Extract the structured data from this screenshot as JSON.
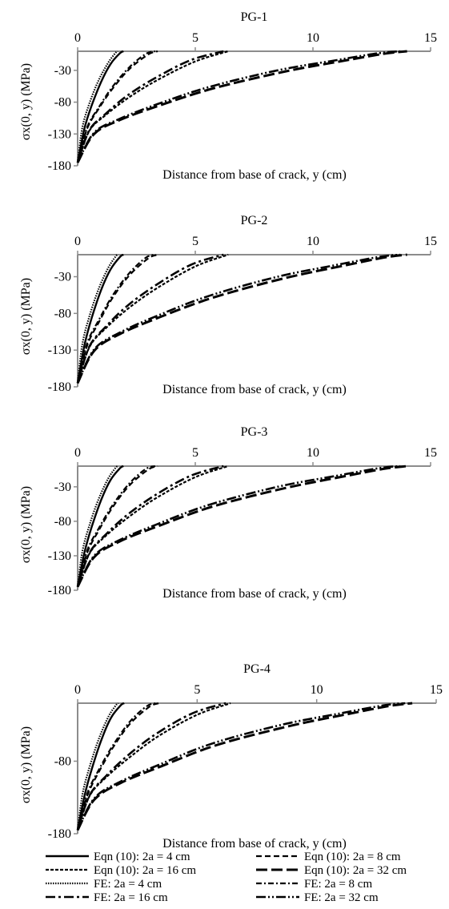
{
  "legend": {
    "placement": "bottom",
    "entries": [
      {
        "key": "eqn4",
        "label": "Eqn (10): 2a = 4 cm",
        "dash": "none",
        "width": 2.4
      },
      {
        "key": "eqn8",
        "label": "Eqn (10): 2a = 8 cm",
        "dash": "7 4",
        "width": 2.2
      },
      {
        "key": "eqn16",
        "label": "Eqn (10): 2a = 16 cm",
        "dash": "4 2",
        "width": 2.2
      },
      {
        "key": "eqn32",
        "label": "Eqn (10): 2a = 32 cm",
        "dash": "14 5",
        "width": 3
      },
      {
        "key": "fe4",
        "label": "FE: 2a = 4 cm",
        "dash": "1.5 1.5",
        "width": 2.2
      },
      {
        "key": "fe8",
        "label": "FE: 2a = 8 cm",
        "dash": "7 3 2 3",
        "width": 2.2
      },
      {
        "key": "fe16",
        "label": "FE: 2a = 16 cm",
        "dash": "12 4 3 4",
        "width": 2.6
      },
      {
        "key": "fe32",
        "label": "FE: 2a = 32 cm",
        "dash": "12 3 2 3 2 3",
        "width": 2.6
      }
    ]
  },
  "chart_data": [
    {
      "type": "line",
      "title": "PG-1",
      "xlabel": "Distance from base of crack, y (cm)",
      "ylabel": "σx(0, y) (MPa)",
      "xlim": [
        0,
        15
      ],
      "ylim": [
        -180,
        0
      ],
      "xticks": [
        "0",
        "5",
        "10",
        "15"
      ],
      "yticks": [
        "-30",
        "-80",
        "-130",
        "-180"
      ],
      "ytick_values": [
        -30,
        -80,
        -130,
        -180
      ],
      "x_axis_position": "top",
      "grid": false,
      "series": [
        {
          "key": "fe4",
          "name": "FE: 2a = 4 cm",
          "x": [
            0,
            0.2,
            0.5,
            0.9,
            1.3,
            1.6,
            1.7
          ],
          "y": [
            -175,
            -120,
            -82,
            -45,
            -18,
            -3,
            0
          ]
        },
        {
          "key": "eqn4",
          "name": "Eqn (10): 2a = 4 cm",
          "x": [
            0,
            0.3,
            0.6,
            1.0,
            1.4,
            1.8,
            1.95
          ],
          "y": [
            -175,
            -120,
            -85,
            -48,
            -20,
            -3,
            0
          ]
        },
        {
          "key": "eqn8",
          "name": "Eqn (10): 2a = 8 cm",
          "x": [
            0,
            0.4,
            0.9,
            1.5,
            2.2,
            3.0,
            3.4
          ],
          "y": [
            -175,
            -122,
            -90,
            -58,
            -28,
            -5,
            0
          ]
        },
        {
          "key": "fe8",
          "name": "FE: 2a = 8 cm",
          "x": [
            0,
            0.4,
            0.9,
            1.5,
            2.2,
            2.9,
            3.3
          ],
          "y": [
            -175,
            -120,
            -88,
            -55,
            -25,
            -4,
            0
          ]
        },
        {
          "key": "eqn16",
          "name": "Eqn (10): 2a = 16 cm",
          "x": [
            0,
            0.5,
            1.2,
            2.2,
            3.4,
            5.0,
            6.4
          ],
          "y": [
            -175,
            -125,
            -100,
            -72,
            -45,
            -16,
            0
          ]
        },
        {
          "key": "fe16",
          "name": "FE: 2a = 16 cm",
          "x": [
            0,
            0.5,
            1.2,
            2.1,
            3.3,
            4.8,
            6.2
          ],
          "y": [
            -175,
            -124,
            -98,
            -70,
            -42,
            -14,
            0
          ]
        },
        {
          "key": "eqn32",
          "name": "Eqn (10): 2a = 32 cm",
          "x": [
            0,
            0.7,
            1.8,
            3.5,
            5.8,
            8.8,
            11.3,
            13.0,
            14.0
          ],
          "y": [
            -175,
            -130,
            -108,
            -85,
            -58,
            -32,
            -15,
            -4,
            0
          ]
        },
        {
          "key": "fe32",
          "name": "FE: 2a = 32 cm",
          "x": [
            0,
            0.7,
            1.8,
            3.4,
            5.6,
            8.5,
            11.0,
            12.8,
            13.7
          ],
          "y": [
            -175,
            -128,
            -106,
            -83,
            -56,
            -30,
            -14,
            -3,
            0
          ]
        }
      ]
    },
    {
      "type": "line",
      "title": "PG-2",
      "xlabel": "Distance from base of crack, y (cm)",
      "ylabel": "σx(0, y) (MPa)",
      "xlim": [
        0,
        15
      ],
      "ylim": [
        -180,
        0
      ],
      "xticks": [
        "0",
        "5",
        "10",
        "15"
      ],
      "yticks": [
        "-30",
        "-80",
        "-130",
        "-180"
      ],
      "ytick_values": [
        -30,
        -80,
        -130,
        -180
      ],
      "x_axis_position": "top",
      "grid": false,
      "series": [
        {
          "key": "fe4",
          "name": "FE: 2a = 4 cm",
          "x": [
            0,
            0.2,
            0.5,
            0.9,
            1.3,
            1.6,
            1.7
          ],
          "y": [
            -175,
            -122,
            -84,
            -46,
            -18,
            -3,
            0
          ]
        },
        {
          "key": "eqn4",
          "name": "Eqn (10): 2a = 4 cm",
          "x": [
            0,
            0.3,
            0.6,
            1.0,
            1.4,
            1.8,
            1.95
          ],
          "y": [
            -175,
            -122,
            -86,
            -48,
            -20,
            -3,
            0
          ]
        },
        {
          "key": "eqn8",
          "name": "Eqn (10): 2a = 8 cm",
          "x": [
            0,
            0.4,
            0.9,
            1.5,
            2.2,
            3.0,
            3.4
          ],
          "y": [
            -175,
            -124,
            -92,
            -58,
            -28,
            -5,
            0
          ]
        },
        {
          "key": "fe8",
          "name": "FE: 2a = 8 cm",
          "x": [
            0,
            0.4,
            0.9,
            1.5,
            2.2,
            2.9,
            3.3
          ],
          "y": [
            -175,
            -121,
            -89,
            -55,
            -25,
            -4,
            0
          ]
        },
        {
          "key": "eqn16",
          "name": "Eqn (10): 2a = 16 cm",
          "x": [
            0,
            0.5,
            1.2,
            2.2,
            3.4,
            5.0,
            6.4
          ],
          "y": [
            -175,
            -126,
            -100,
            -72,
            -45,
            -16,
            0
          ]
        },
        {
          "key": "fe16",
          "name": "FE: 2a = 16 cm",
          "x": [
            0,
            0.5,
            1.2,
            2.1,
            3.3,
            4.8,
            6.2
          ],
          "y": [
            -175,
            -125,
            -98,
            -70,
            -42,
            -14,
            0
          ]
        },
        {
          "key": "eqn32",
          "name": "Eqn (10): 2a = 32 cm",
          "x": [
            0,
            0.7,
            1.8,
            3.5,
            5.8,
            8.8,
            11.3,
            13.0,
            14.0
          ],
          "y": [
            -175,
            -131,
            -108,
            -85,
            -58,
            -32,
            -15,
            -4,
            0
          ]
        },
        {
          "key": "fe32",
          "name": "FE: 2a = 32 cm",
          "x": [
            0,
            0.7,
            1.8,
            3.4,
            5.6,
            8.5,
            11.0,
            12.8,
            13.7
          ],
          "y": [
            -175,
            -129,
            -106,
            -83,
            -56,
            -30,
            -14,
            -3,
            0
          ]
        }
      ]
    },
    {
      "type": "line",
      "title": "PG-3",
      "xlabel": "Distance from base of crack, y (cm)",
      "ylabel": "σx(0, y) (MPa)",
      "xlim": [
        0,
        15
      ],
      "ylim": [
        -180,
        0
      ],
      "xticks": [
        "0",
        "5",
        "10",
        "15"
      ],
      "yticks": [
        "-30",
        "-80",
        "-130",
        "-180"
      ],
      "ytick_values": [
        -30,
        -80,
        -130,
        -180
      ],
      "x_axis_position": "top",
      "grid": false,
      "series": [
        {
          "key": "fe4",
          "name": "FE: 2a = 4 cm",
          "x": [
            0,
            0.2,
            0.5,
            0.9,
            1.3,
            1.6,
            1.7
          ],
          "y": [
            -175,
            -124,
            -86,
            -47,
            -18,
            -3,
            0
          ]
        },
        {
          "key": "eqn4",
          "name": "Eqn (10): 2a = 4 cm",
          "x": [
            0,
            0.3,
            0.6,
            1.0,
            1.4,
            1.8,
            1.95
          ],
          "y": [
            -175,
            -124,
            -88,
            -49,
            -20,
            -3,
            0
          ]
        },
        {
          "key": "eqn8",
          "name": "Eqn (10): 2a = 8 cm",
          "x": [
            0,
            0.4,
            0.9,
            1.5,
            2.2,
            3.0,
            3.4
          ],
          "y": [
            -175,
            -126,
            -93,
            -59,
            -28,
            -5,
            0
          ]
        },
        {
          "key": "fe8",
          "name": "FE: 2a = 8 cm",
          "x": [
            0,
            0.4,
            0.9,
            1.5,
            2.2,
            2.9,
            3.3
          ],
          "y": [
            -175,
            -123,
            -90,
            -56,
            -25,
            -4,
            0
          ]
        },
        {
          "key": "eqn16",
          "name": "Eqn (10): 2a = 16 cm",
          "x": [
            0,
            0.5,
            1.2,
            2.2,
            3.4,
            5.0,
            6.4
          ],
          "y": [
            -175,
            -127,
            -101,
            -73,
            -45,
            -16,
            0
          ]
        },
        {
          "key": "fe16",
          "name": "FE: 2a = 16 cm",
          "x": [
            0,
            0.5,
            1.2,
            2.1,
            3.3,
            4.8,
            6.2
          ],
          "y": [
            -175,
            -126,
            -99,
            -71,
            -42,
            -14,
            0
          ]
        },
        {
          "key": "eqn32",
          "name": "Eqn (10): 2a = 32 cm",
          "x": [
            0,
            0.7,
            1.8,
            3.5,
            5.8,
            8.8,
            11.3,
            13.0,
            14.0
          ],
          "y": [
            -175,
            -132,
            -109,
            -86,
            -58,
            -32,
            -15,
            -4,
            0
          ]
        },
        {
          "key": "fe32",
          "name": "FE: 2a = 32 cm",
          "x": [
            0,
            0.7,
            1.8,
            3.4,
            5.6,
            8.5,
            11.0,
            12.8,
            13.7
          ],
          "y": [
            -175,
            -130,
            -107,
            -84,
            -56,
            -30,
            -14,
            -3,
            0
          ]
        }
      ]
    },
    {
      "type": "line",
      "title": "PG-4",
      "xlabel": "Distance from base of crack, y (cm)",
      "ylabel": "σx(0, y) (MPa)",
      "xlim": [
        0,
        15
      ],
      "ylim": [
        -180,
        0
      ],
      "xticks": [
        "0",
        "5",
        "10",
        "15"
      ],
      "yticks": [
        "-80",
        "-180"
      ],
      "ytick_values": [
        -80,
        -180
      ],
      "x_axis_position": "top",
      "grid": false,
      "series": [
        {
          "key": "fe4",
          "name": "FE: 2a = 4 cm",
          "x": [
            0,
            0.2,
            0.5,
            0.9,
            1.3,
            1.6,
            1.7
          ],
          "y": [
            -175,
            -126,
            -88,
            -48,
            -18,
            -3,
            0
          ]
        },
        {
          "key": "eqn4",
          "name": "Eqn (10): 2a = 4 cm",
          "x": [
            0,
            0.3,
            0.6,
            1.0,
            1.4,
            1.8,
            1.95
          ],
          "y": [
            -175,
            -126,
            -90,
            -50,
            -20,
            -3,
            0
          ]
        },
        {
          "key": "eqn8",
          "name": "Eqn (10): 2a = 8 cm",
          "x": [
            0,
            0.4,
            0.9,
            1.5,
            2.2,
            3.0,
            3.4
          ],
          "y": [
            -175,
            -128,
            -94,
            -60,
            -28,
            -5,
            0
          ]
        },
        {
          "key": "fe8",
          "name": "FE: 2a = 8 cm",
          "x": [
            0,
            0.4,
            0.9,
            1.5,
            2.2,
            2.9,
            3.3
          ],
          "y": [
            -175,
            -125,
            -91,
            -57,
            -25,
            -4,
            0
          ]
        },
        {
          "key": "eqn16",
          "name": "Eqn (10): 2a = 16 cm",
          "x": [
            0,
            0.5,
            1.2,
            2.2,
            3.4,
            5.0,
            6.4
          ],
          "y": [
            -175,
            -128,
            -102,
            -74,
            -45,
            -16,
            0
          ]
        },
        {
          "key": "fe16",
          "name": "FE: 2a = 16 cm",
          "x": [
            0,
            0.5,
            1.2,
            2.1,
            3.3,
            4.8,
            6.2
          ],
          "y": [
            -175,
            -127,
            -100,
            -72,
            -42,
            -14,
            0
          ]
        },
        {
          "key": "eqn32",
          "name": "Eqn (10): 2a = 32 cm",
          "x": [
            0,
            0.7,
            1.8,
            3.5,
            5.8,
            8.8,
            11.3,
            13.0,
            14.0
          ],
          "y": [
            -175,
            -133,
            -110,
            -87,
            -58,
            -32,
            -15,
            -4,
            0
          ]
        },
        {
          "key": "fe32",
          "name": "FE: 2a = 32 cm",
          "x": [
            0,
            0.7,
            1.8,
            3.4,
            5.6,
            8.5,
            11.0,
            12.8,
            13.7
          ],
          "y": [
            -175,
            -131,
            -108,
            -85,
            -56,
            -30,
            -14,
            -3,
            0
          ]
        }
      ]
    }
  ]
}
